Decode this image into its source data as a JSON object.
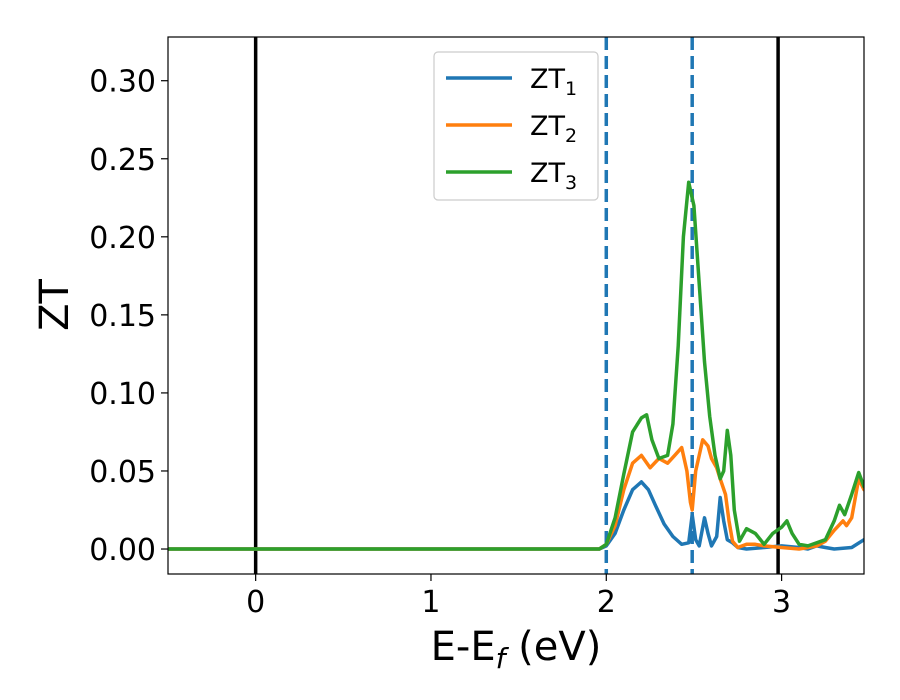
{
  "chart_data": {
    "type": "line",
    "xlabel": {
      "main": "E-E",
      "sub": "f",
      "suffix": " (eV)"
    },
    "ylabel": "ZT",
    "xlim": [
      -0.5,
      3.47
    ],
    "ylim": [
      -0.016,
      0.328
    ],
    "xticks": [
      0,
      1,
      2,
      3
    ],
    "xtick_labels": [
      "0",
      "1",
      "2",
      "3"
    ],
    "yticks": [
      0.0,
      0.05,
      0.1,
      0.15,
      0.2,
      0.25,
      0.3
    ],
    "ytick_labels": [
      "0.00",
      "0.05",
      "0.10",
      "0.15",
      "0.20",
      "0.25",
      "0.30"
    ],
    "grid": false,
    "legend_position": "top-center",
    "vlines": [
      {
        "x": 0.0,
        "style": "solid",
        "color": "#000000"
      },
      {
        "x": 2.98,
        "style": "solid",
        "color": "#000000"
      },
      {
        "x": 2.0,
        "style": "dashed",
        "color": "#1f77b4"
      },
      {
        "x": 2.49,
        "style": "dashed",
        "color": "#1f77b4"
      }
    ],
    "series": [
      {
        "name": "ZT",
        "name_sub": "1",
        "color": "#1f77b4",
        "points": [
          [
            -0.5,
            0
          ],
          [
            1.9,
            0
          ],
          [
            1.96,
            0
          ],
          [
            2.0,
            0.002
          ],
          [
            2.05,
            0.01
          ],
          [
            2.1,
            0.025
          ],
          [
            2.15,
            0.038
          ],
          [
            2.2,
            0.043
          ],
          [
            2.24,
            0.038
          ],
          [
            2.28,
            0.028
          ],
          [
            2.33,
            0.016
          ],
          [
            2.38,
            0.008
          ],
          [
            2.43,
            0.003
          ],
          [
            2.47,
            0.004
          ],
          [
            2.49,
            0.022
          ],
          [
            2.51,
            0.006
          ],
          [
            2.53,
            0.002
          ],
          [
            2.56,
            0.02
          ],
          [
            2.58,
            0.01
          ],
          [
            2.6,
            0.002
          ],
          [
            2.63,
            0.008
          ],
          [
            2.65,
            0.033
          ],
          [
            2.67,
            0.018
          ],
          [
            2.69,
            0.006
          ],
          [
            2.72,
            0.004
          ],
          [
            2.75,
            0.001
          ],
          [
            2.8,
            0
          ],
          [
            2.9,
            0.001
          ],
          [
            3.0,
            0.002
          ],
          [
            3.1,
            0.001
          ],
          [
            3.15,
            0
          ],
          [
            3.2,
            0.002
          ],
          [
            3.25,
            0.001
          ],
          [
            3.3,
            0
          ],
          [
            3.4,
            0.001
          ],
          [
            3.47,
            0.006
          ]
        ]
      },
      {
        "name": "ZT",
        "name_sub": "2",
        "color": "#ff7f0e",
        "points": [
          [
            -0.5,
            0
          ],
          [
            1.9,
            0
          ],
          [
            1.96,
            0
          ],
          [
            2.0,
            0.003
          ],
          [
            2.05,
            0.015
          ],
          [
            2.1,
            0.038
          ],
          [
            2.15,
            0.055
          ],
          [
            2.2,
            0.06
          ],
          [
            2.25,
            0.052
          ],
          [
            2.3,
            0.058
          ],
          [
            2.35,
            0.055
          ],
          [
            2.39,
            0.06
          ],
          [
            2.43,
            0.065
          ],
          [
            2.46,
            0.05
          ],
          [
            2.48,
            0.03
          ],
          [
            2.49,
            0.025
          ],
          [
            2.51,
            0.05
          ],
          [
            2.55,
            0.07
          ],
          [
            2.58,
            0.066
          ],
          [
            2.6,
            0.058
          ],
          [
            2.63,
            0.052
          ],
          [
            2.65,
            0.045
          ],
          [
            2.68,
            0.035
          ],
          [
            2.7,
            0.018
          ],
          [
            2.72,
            0.005
          ],
          [
            2.75,
            0.001
          ],
          [
            2.8,
            0.003
          ],
          [
            2.85,
            0.003
          ],
          [
            2.9,
            0.002
          ],
          [
            3.0,
            0.001
          ],
          [
            3.1,
            0.0
          ],
          [
            3.15,
            0.001
          ],
          [
            3.2,
            0.002
          ],
          [
            3.25,
            0.005
          ],
          [
            3.3,
            0.012
          ],
          [
            3.35,
            0.018
          ],
          [
            3.37,
            0.015
          ],
          [
            3.4,
            0.02
          ],
          [
            3.44,
            0.045
          ],
          [
            3.47,
            0.038
          ]
        ]
      },
      {
        "name": "ZT",
        "name_sub": "3",
        "color": "#2ca02c",
        "points": [
          [
            -0.5,
            0
          ],
          [
            1.9,
            0
          ],
          [
            1.96,
            0
          ],
          [
            2.0,
            0.003
          ],
          [
            2.05,
            0.02
          ],
          [
            2.1,
            0.048
          ],
          [
            2.15,
            0.075
          ],
          [
            2.2,
            0.084
          ],
          [
            2.23,
            0.086
          ],
          [
            2.26,
            0.07
          ],
          [
            2.3,
            0.058
          ],
          [
            2.35,
            0.06
          ],
          [
            2.38,
            0.08
          ],
          [
            2.41,
            0.13
          ],
          [
            2.44,
            0.2
          ],
          [
            2.47,
            0.235
          ],
          [
            2.5,
            0.22
          ],
          [
            2.53,
            0.17
          ],
          [
            2.56,
            0.12
          ],
          [
            2.59,
            0.085
          ],
          [
            2.62,
            0.06
          ],
          [
            2.65,
            0.045
          ],
          [
            2.67,
            0.05
          ],
          [
            2.69,
            0.076
          ],
          [
            2.71,
            0.06
          ],
          [
            2.73,
            0.025
          ],
          [
            2.76,
            0.005
          ],
          [
            2.8,
            0.013
          ],
          [
            2.85,
            0.01
          ],
          [
            2.9,
            0.003
          ],
          [
            2.95,
            0.01
          ],
          [
            3.0,
            0.014
          ],
          [
            3.03,
            0.018
          ],
          [
            3.06,
            0.01
          ],
          [
            3.1,
            0.003
          ],
          [
            3.15,
            0.002
          ],
          [
            3.2,
            0.004
          ],
          [
            3.25,
            0.006
          ],
          [
            3.3,
            0.018
          ],
          [
            3.33,
            0.028
          ],
          [
            3.36,
            0.022
          ],
          [
            3.4,
            0.035
          ],
          [
            3.44,
            0.049
          ],
          [
            3.47,
            0.04
          ]
        ]
      }
    ]
  }
}
